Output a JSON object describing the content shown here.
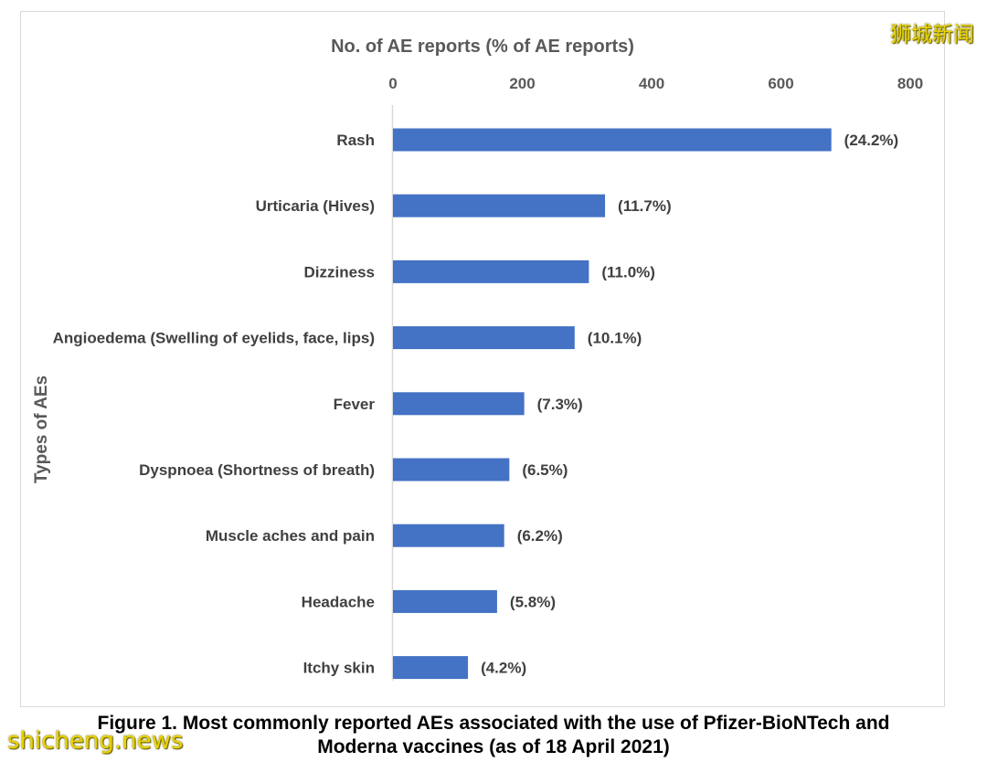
{
  "watermarks": {
    "top_right": "狮城新闻",
    "bottom_left": "shicheng.news"
  },
  "figure_caption": {
    "line1": "Figure 1. Most commonly reported AEs associated with the use of Pfizer-BioNTech and",
    "line2": "Moderna vaccines (as of 18 April 2021)"
  },
  "colors": {
    "bar": "#4472c4",
    "axis_text": "#595959",
    "label_text": "#404040",
    "axis_line": "#d9d9d9"
  },
  "chart_data": {
    "type": "bar",
    "orientation": "horizontal",
    "xlabel": "No. of AE reports (% of AE reports)",
    "ylabel": "Types of AEs",
    "x_axis_position": "top",
    "xlim": [
      0,
      800
    ],
    "xticks": [
      "0",
      "200",
      "400",
      "600",
      "800"
    ],
    "grid": false,
    "legend": "none",
    "categories": [
      "Rash",
      "Urticaria (Hives)",
      "Dizziness",
      "Angioedema (Swelling of eyelids, face, lips)",
      "Fever",
      "Dyspnoea (Shortness of breath)",
      "Muscle aches and pain",
      "Headache",
      "Itchy skin"
    ],
    "values": [
      678,
      328,
      303,
      281,
      203,
      180,
      172,
      161,
      116
    ],
    "data_labels": [
      "(24.2%)",
      "(11.7%)",
      "(11.0%)",
      "(10.1%)",
      "(7.3%)",
      "(6.5%)",
      "(6.2%)",
      "(5.8%)",
      "(4.2%)"
    ]
  }
}
